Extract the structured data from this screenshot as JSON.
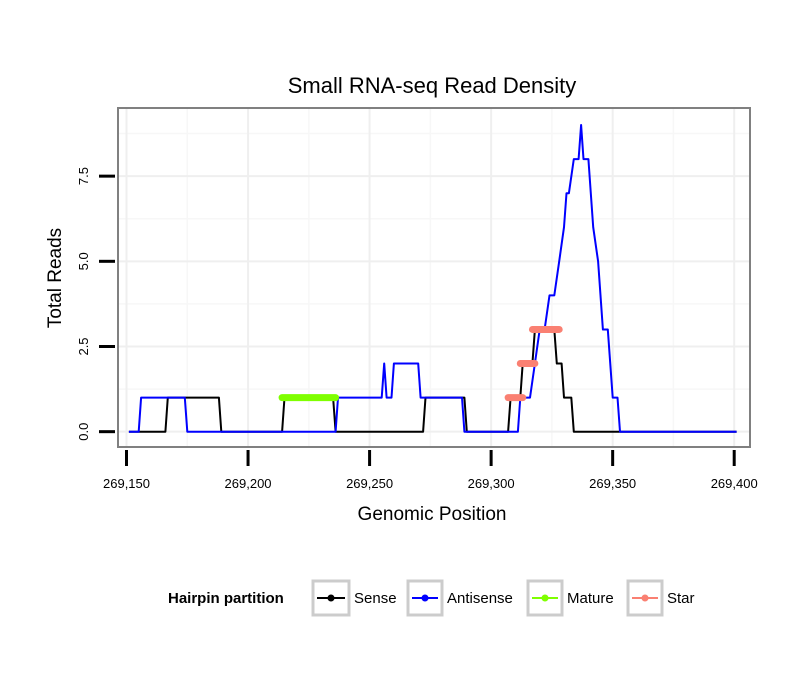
{
  "chart_data": {
    "type": "line",
    "title": "Small RNA-seq Read Density",
    "xlabel": "Genomic Position",
    "ylabel": "Total Reads",
    "xlim": [
      269146.5,
      269406.5
    ],
    "ylim": [
      -0.45,
      9.5
    ],
    "x_ticks": [
      269150,
      269200,
      269250,
      269300,
      269350,
      269400
    ],
    "x_tick_labels": [
      "269,150",
      "269,200",
      "269,250",
      "269,300",
      "269,350",
      "269,400"
    ],
    "y_ticks": [
      0,
      2.5,
      5,
      7.5
    ],
    "y_tick_labels": [
      "0.0",
      "2.5",
      "5.0",
      "7.5"
    ],
    "grid": true,
    "legend": {
      "title": "Hairpin partition",
      "position": "bottom",
      "entries": [
        "Sense",
        "Antisense",
        "Mature",
        "Star"
      ]
    },
    "series": [
      {
        "name": "Sense",
        "color": "#000000",
        "kind": "line",
        "points": [
          [
            269151,
            0
          ],
          [
            269166,
            0
          ],
          [
            269167,
            1
          ],
          [
            269188,
            1
          ],
          [
            269189,
            0
          ],
          [
            269214,
            0
          ],
          [
            269215,
            1
          ],
          [
            269235,
            1
          ],
          [
            269236,
            0
          ],
          [
            269262,
            0
          ],
          [
            269263,
            0
          ],
          [
            269264,
            0
          ],
          [
            269265,
            0
          ],
          [
            269266,
            0
          ],
          [
            269267,
            0
          ],
          [
            269268,
            0
          ],
          [
            269269,
            0
          ],
          [
            269270,
            0
          ],
          [
            269271,
            0
          ],
          [
            269272,
            0
          ],
          [
            269273,
            1
          ],
          [
            269289,
            1
          ],
          [
            269290,
            0
          ],
          [
            269307,
            0
          ],
          [
            269308,
            1
          ],
          [
            269312,
            1
          ],
          [
            269313,
            2
          ],
          [
            269317,
            2
          ],
          [
            269318,
            3
          ],
          [
            269326,
            3
          ],
          [
            269327,
            2
          ],
          [
            269329,
            2
          ],
          [
            269330,
            1
          ],
          [
            269333,
            1
          ],
          [
            269334,
            0
          ],
          [
            269401,
            0
          ]
        ]
      },
      {
        "name": "Antisense",
        "color": "#0000ff",
        "kind": "line",
        "points": [
          [
            269151,
            0
          ],
          [
            269155,
            0
          ],
          [
            269156,
            1
          ],
          [
            269174,
            1
          ],
          [
            269175,
            0
          ],
          [
            269234,
            0
          ],
          [
            269235,
            0
          ],
          [
            269236,
            0
          ],
          [
            269237,
            1
          ],
          [
            269255,
            1
          ],
          [
            269256,
            2
          ],
          [
            269257,
            1
          ],
          [
            269259,
            1
          ],
          [
            269260,
            2
          ],
          [
            269270,
            2
          ],
          [
            269271,
            1
          ],
          [
            269288,
            1
          ],
          [
            269289,
            0
          ],
          [
            269310,
            0
          ],
          [
            269311,
            0
          ],
          [
            269312,
            1
          ],
          [
            269314,
            1
          ],
          [
            269316,
            1
          ],
          [
            269318,
            2
          ],
          [
            269320,
            3
          ],
          [
            269322,
            3
          ],
          [
            269324,
            4
          ],
          [
            269326,
            4
          ],
          [
            269328,
            5
          ],
          [
            269330,
            6
          ],
          [
            269331,
            7
          ],
          [
            269332,
            7
          ],
          [
            269334,
            8
          ],
          [
            269336,
            8
          ],
          [
            269337,
            9
          ],
          [
            269338,
            8
          ],
          [
            269340,
            8
          ],
          [
            269341,
            7
          ],
          [
            269342,
            6
          ],
          [
            269344,
            5
          ],
          [
            269346,
            3
          ],
          [
            269348,
            3
          ],
          [
            269350,
            1
          ],
          [
            269352,
            1
          ],
          [
            269353,
            0
          ],
          [
            269401,
            0
          ]
        ]
      },
      {
        "name": "Mature",
        "color": "#7fff00",
        "kind": "segment",
        "segments": [
          {
            "x1": 269214,
            "x2": 269236,
            "y": 1
          }
        ]
      },
      {
        "name": "Star",
        "color": "#fa8072",
        "kind": "segment",
        "segments": [
          {
            "x1": 269307,
            "x2": 269313,
            "y": 1
          },
          {
            "x1": 269312,
            "x2": 269318,
            "y": 2
          },
          {
            "x1": 269317,
            "x2": 269328,
            "y": 3
          }
        ]
      }
    ]
  }
}
